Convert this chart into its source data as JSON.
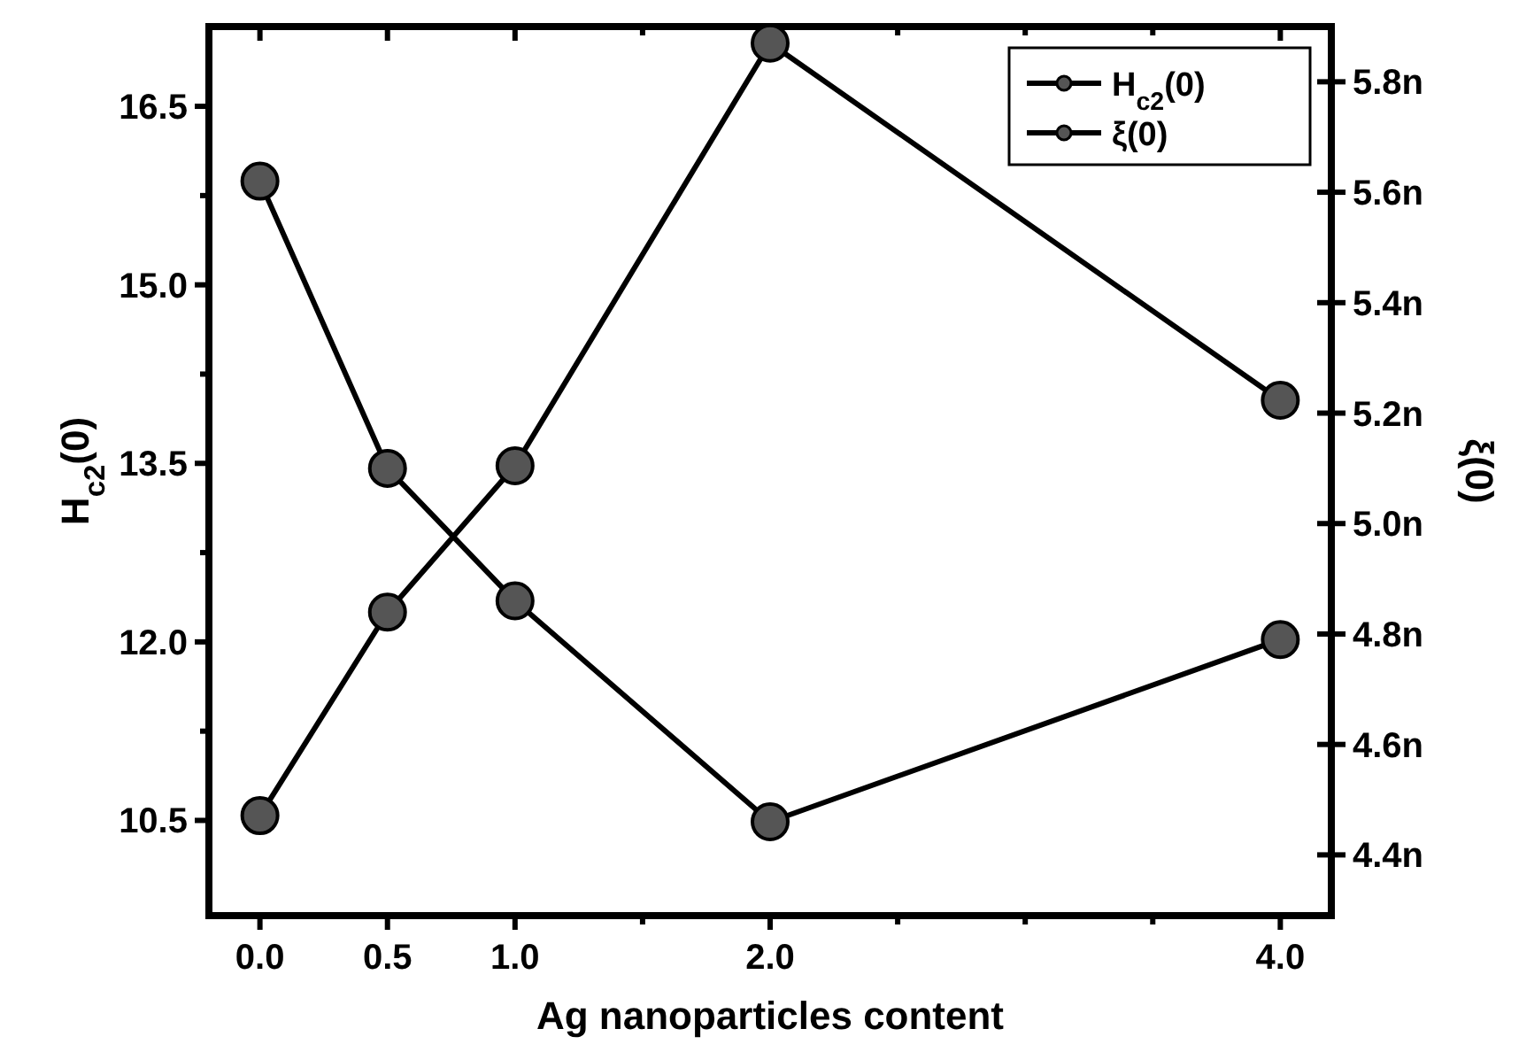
{
  "chart_data": {
    "type": "line",
    "xlabel": "Ag nanoparticles content",
    "ylabel": "H$_{c2}$(0)",
    "y2label": "ξ(0)",
    "xlim": [
      -0.2,
      4.2
    ],
    "xticks": [
      {
        "value": 0,
        "label": "0.0"
      },
      0.5,
      {
        "value": 1,
        "label": "1.0"
      },
      {
        "value": 1.5,
        "label": null
      },
      {
        "value": 2,
        "label": "2.0"
      },
      {
        "value": 2.5,
        "label": null
      },
      {
        "value": 3,
        "label": null
      },
      {
        "value": 3.5,
        "label": null
      },
      {
        "value": 4,
        "label": "4.0"
      }
    ],
    "ylim": [
      9.7,
      17.17
    ],
    "yticks": [
      {
        "value": 10.5,
        "label": "10.5"
      },
      {
        "value": 11.25,
        "label": null
      },
      {
        "value": 12,
        "label": "12.0"
      },
      {
        "value": 12.75,
        "label": null
      },
      {
        "value": 13.5,
        "label": "13.5"
      },
      {
        "value": 14.25,
        "label": null
      },
      {
        "value": 15,
        "label": "15.0"
      },
      {
        "value": 15.75,
        "label": null
      },
      {
        "value": 16.5,
        "label": "16.5"
      }
    ],
    "y2lim": [
      4.29,
      5.9
    ],
    "y2ticks": [
      {
        "value": 4.4,
        "label": "4.4n"
      },
      {
        "value": 4.6,
        "label": "4.6n"
      },
      {
        "value": 4.8,
        "label": "4.8n"
      },
      {
        "value": 5.0,
        "label": "5.0n"
      },
      {
        "value": 5.2,
        "label": "5.2n"
      },
      {
        "value": 5.4,
        "label": "5.4n"
      },
      {
        "value": 5.6,
        "label": "5.6n"
      },
      {
        "value": 5.8,
        "label": "5.8n"
      }
    ],
    "x": [
      0,
      0.5,
      1,
      2,
      4
    ],
    "series": [
      {
        "name": "H$_{c2}$(0)",
        "color": "#000000",
        "values": [
          10.54,
          12.25,
          13.48,
          17.03,
          14.03
        ]
      },
      {
        "name": "ξ(0)",
        "color": "#000000",
        "axis": "y2",
        "values": [
          5.62,
          5.1,
          4.86,
          4.46,
          4.79
        ]
      }
    ],
    "marker": "circle",
    "line_style": "solid",
    "legend": "top right",
    "grid": false
  }
}
